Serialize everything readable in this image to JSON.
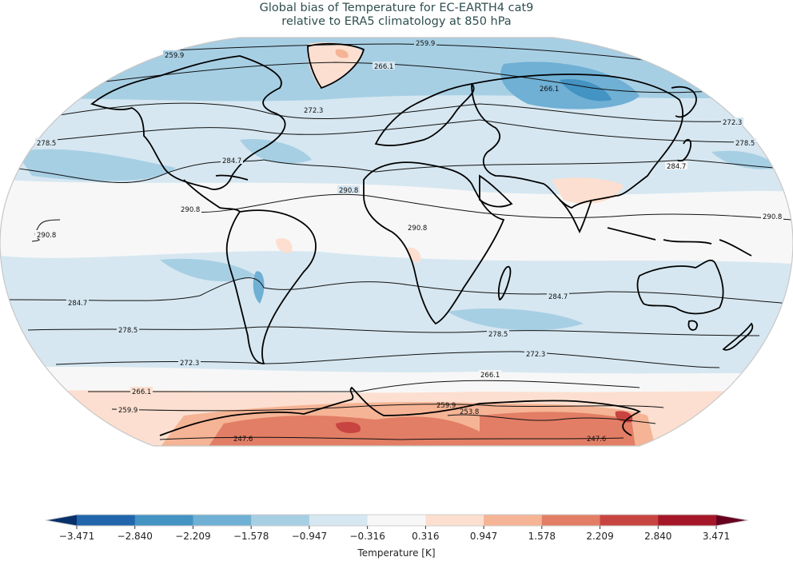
{
  "title": {
    "line1": "Global bias of Temperature for EC-EARTH4 cat9",
    "line2": "relative to ERA5 climatology at 850 hPa"
  },
  "map": {
    "projection": "Robinson",
    "variable": "Temperature bias",
    "model": "EC-EARTH4 cat9",
    "reference": "ERA5 climatology",
    "level": "850 hPa",
    "contour_labels": [
      "259.9",
      "266.1",
      "272.3",
      "278.5",
      "284.7",
      "290.8",
      "253.8",
      "247.6"
    ],
    "regions": {
      "greenland": "positive bias (~0.3 to 1.6 K)",
      "siberia": "negative bias (down to ~-2.8 K)",
      "antarctica": "positive bias (~0.9 to 2.8 K)",
      "tropics": "near zero (-0.3 to 0.3 K)",
      "mid_latitudes": "weak negative bias (-0.3 to -1.6 K)",
      "india": "weak positive bias"
    }
  },
  "colorbar": {
    "title": "Temperature [K]",
    "ticks": [
      "−3.471",
      "−2.840",
      "−2.209",
      "−1.578",
      "−0.947",
      "−0.316",
      "0.316",
      "0.947",
      "1.578",
      "2.209",
      "2.840",
      "3.471"
    ],
    "colors": [
      "#08306b",
      "#2166ac",
      "#4393c3",
      "#6fb0d4",
      "#a7cfe4",
      "#d6e7f1",
      "#f7f7f7",
      "#fcdfd0",
      "#f5b495",
      "#e27e65",
      "#c84440",
      "#a51728",
      "#67001f"
    ],
    "extend": "both"
  },
  "chart_data": {
    "type": "heatmap",
    "title": "Global bias of Temperature for EC-EARTH4 cat9 relative to ERA5 climatology at 850 hPa",
    "colorbar_label": "Temperature [K]",
    "levels": [
      -3.471,
      -2.84,
      -2.209,
      -1.578,
      -0.947,
      -0.316,
      0.316,
      0.947,
      1.578,
      2.209,
      2.84,
      3.471
    ],
    "contour_levels_K": [
      247.6,
      253.8,
      259.9,
      266.1,
      272.3,
      278.5,
      284.7,
      290.8
    ],
    "colormap": "RdBu_r",
    "extend": "both"
  }
}
